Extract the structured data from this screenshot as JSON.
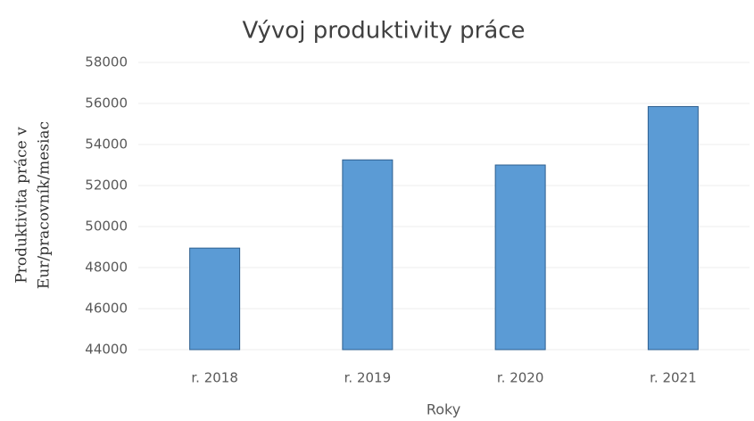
{
  "chart_data": {
    "type": "bar",
    "title": "Vývoj produktivity práce",
    "x_label": "Roky",
    "y_label": [
      "Produktivita práce v",
      "Eur/pracovník/mesiac"
    ],
    "categories": [
      "r. 2018",
      "r. 2019",
      "r. 2020",
      "r. 2021"
    ],
    "values": [
      48950,
      53250,
      53000,
      55850
    ],
    "color": "#5b9bd5",
    "ylim": [
      44000,
      58000
    ],
    "yticks": [
      44000,
      46000,
      48000,
      50000,
      52000,
      54000,
      56000,
      58000
    ],
    "grid": true
  }
}
